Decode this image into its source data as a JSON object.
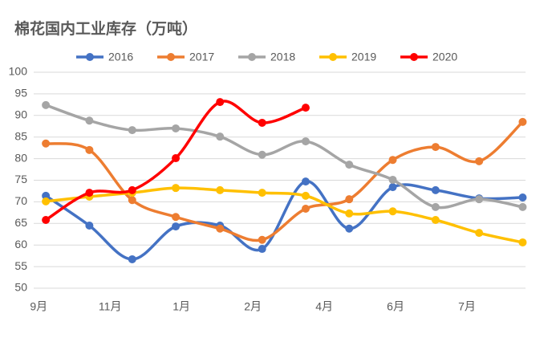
{
  "chart_data": {
    "type": "line",
    "title": "棉花国内工业库存（万吨）",
    "x": [
      0.1,
      0.71,
      1.31,
      1.92,
      2.54,
      3.13,
      3.74,
      4.35,
      4.96,
      5.56,
      6.17,
      6.78
    ],
    "xlim": [
      -0.07,
      6.82
    ],
    "xticks": [
      {
        "value": 0,
        "label": "9月"
      },
      {
        "value": 1,
        "label": "11月"
      },
      {
        "value": 2,
        "label": "1月"
      },
      {
        "value": 3,
        "label": "2月"
      },
      {
        "value": 4,
        "label": "4月"
      },
      {
        "value": 5,
        "label": "6月"
      },
      {
        "value": 6,
        "label": "7月"
      }
    ],
    "ylim": [
      50,
      100
    ],
    "yticks": [
      50,
      55,
      60,
      65,
      70,
      75,
      80,
      85,
      90,
      95,
      100
    ],
    "grid": true,
    "legend": "top",
    "series": [
      {
        "name": "2016",
        "color": "#4472c4",
        "values": [
          71.4,
          64.5,
          56.7,
          64.3,
          64.5,
          59.1,
          74.7,
          63.8,
          73.4,
          72.7,
          70.8,
          71
        ]
      },
      {
        "name": "2017",
        "color": "#ed7d31",
        "values": [
          83.5,
          82,
          70.4,
          66.5,
          63.8,
          61.2,
          68.4,
          70.6,
          79.7,
          82.7,
          79.4,
          88.5
        ]
      },
      {
        "name": "2018",
        "color": "#a5a5a5",
        "values": [
          92.4,
          88.8,
          86.6,
          87,
          85.1,
          80.9,
          84,
          78.6,
          75.1,
          68.8,
          70.6,
          68.8
        ]
      },
      {
        "name": "2019",
        "color": "#ffc000",
        "values": [
          70.1,
          71.2,
          72.1,
          73.2,
          72.7,
          72.1,
          71.4,
          67.3,
          67.8,
          65.8,
          62.8,
          60.6
        ]
      },
      {
        "name": "2020",
        "color": "#ff0000",
        "values": [
          65.8,
          72.1,
          72.7,
          80.1,
          93.1,
          88.3,
          91.8,
          null,
          null,
          null,
          null,
          null
        ]
      }
    ]
  }
}
